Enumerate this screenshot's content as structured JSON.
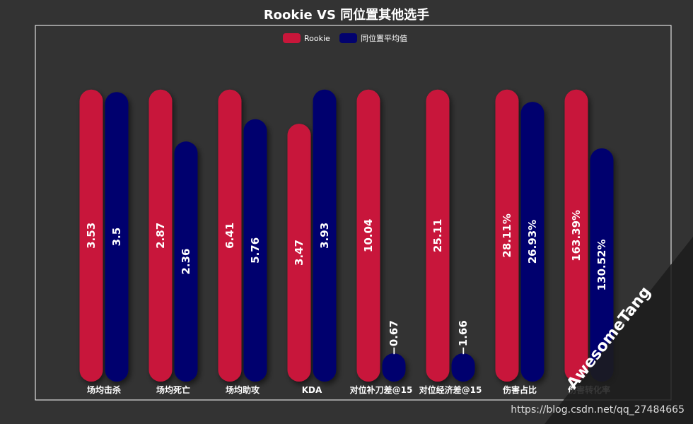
{
  "page": {
    "title": "Rookie VS 同位置其他选手"
  },
  "watermark": {
    "url": "https://blog.csdn.net/qq_27484665",
    "brand": "AwesomeTang"
  },
  "colors": {
    "background": "#333333",
    "rookie": "#C8163A",
    "average": "#02026E",
    "text": "#ffffff",
    "frame": "#ffffff"
  },
  "chart_data": {
    "type": "bar",
    "title": "Rookie VS 同位置其他选手",
    "legend_position": "top-center",
    "categories": [
      "场均击杀",
      "场均死亡",
      "场均助攻",
      "KDA",
      "对位补刀差@15",
      "对位经济差@15",
      "伤害占比",
      "伤害转化率"
    ],
    "series": [
      {
        "name": "Rookie",
        "values": [
          3.53,
          2.87,
          6.41,
          3.47,
          10.04,
          25.11,
          28.11,
          163.39
        ],
        "labels": [
          "3.53",
          "2.87",
          "6.41",
          "3.47",
          "10.04",
          "25.11",
          "28.11%",
          "163.39%"
        ]
      },
      {
        "name": "同位置平均值",
        "values": [
          3.5,
          2.36,
          5.76,
          3.93,
          -0.67,
          -1.66,
          26.93,
          130.52
        ],
        "labels": [
          "3.5",
          "2.36",
          "5.76",
          "3.93",
          "−0.67",
          "−1.66",
          "26.93%",
          "130.52%"
        ]
      }
    ],
    "grid": false,
    "axes_visible": false
  }
}
